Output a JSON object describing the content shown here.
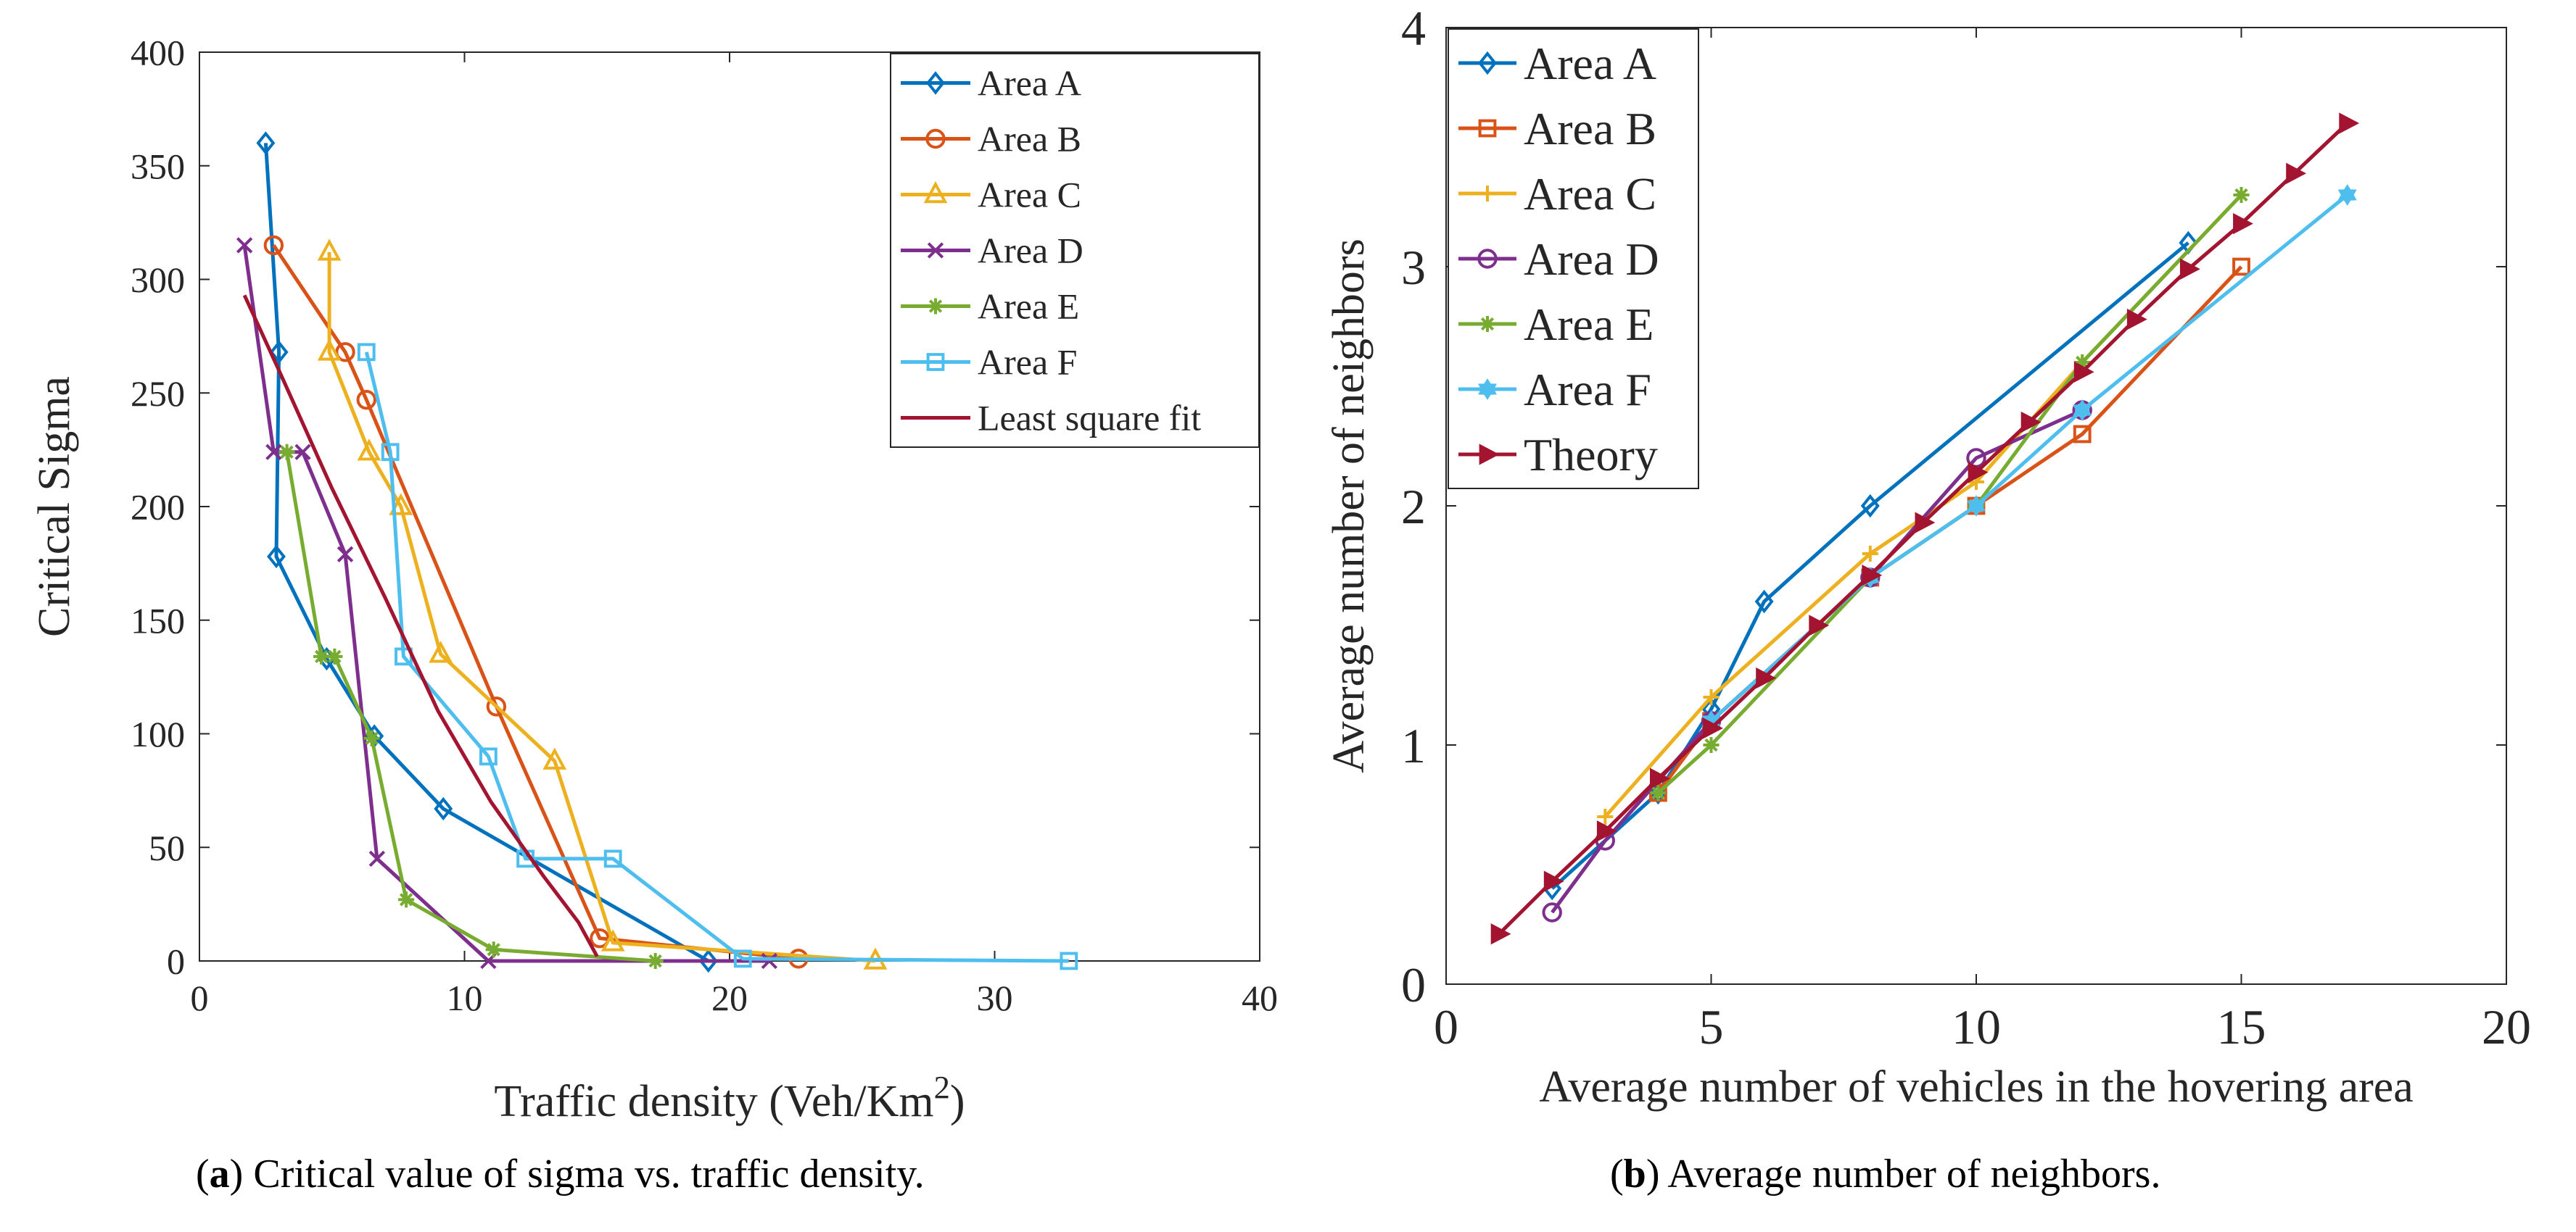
{
  "captions": {
    "a": {
      "tag": "a",
      "text": "Critical value of sigma vs. traffic density."
    },
    "b": {
      "tag": "b",
      "text": "Average number of neighbors."
    }
  },
  "chart_data": [
    {
      "type": "line",
      "title": "",
      "xlabel": "Traffic density (Veh/Km",
      "xlabel_sup": "2",
      "xlabel_suffix": ")",
      "ylabel": "Critical Sigma",
      "xlim": [
        0,
        40
      ],
      "ylim": [
        0,
        400
      ],
      "xticks": [
        0,
        10,
        20,
        30,
        40
      ],
      "yticks": [
        0,
        50,
        100,
        150,
        200,
        250,
        300,
        350,
        400
      ],
      "grid": false,
      "legend_position": "top-right",
      "series": [
        {
          "name": "Area A",
          "color": "#0072BD",
          "marker": "diamond",
          "x": [
            2.5,
            3.0,
            2.9,
            4.8,
            6.6,
            9.2,
            19.2
          ],
          "y": [
            360,
            268,
            178,
            133,
            99,
            67,
            0
          ]
        },
        {
          "name": "Area B",
          "color": "#D95319",
          "marker": "circle",
          "x": [
            2.8,
            5.5,
            6.3,
            11.2,
            15.1,
            22.6
          ],
          "y": [
            315,
            268,
            247,
            112,
            10,
            1
          ]
        },
        {
          "name": "Area C",
          "color": "#EDB120",
          "marker": "triangle",
          "x": [
            4.9,
            4.9,
            6.4,
            7.6,
            9.1,
            13.4,
            15.6,
            25.5
          ],
          "y": [
            312,
            268,
            224,
            200,
            135,
            88,
            8,
            0
          ]
        },
        {
          "name": "Area D",
          "color": "#7E2F8E",
          "marker": "x",
          "x": [
            1.7,
            2.8,
            3.9,
            5.5,
            6.7,
            10.9,
            21.5
          ],
          "y": [
            315,
            224,
            224,
            179,
            45,
            0,
            0
          ]
        },
        {
          "name": "Area E",
          "color": "#77AC30",
          "marker": "star",
          "x": [
            3.3,
            4.6,
            5.1,
            6.5,
            7.8,
            11.1,
            17.2
          ],
          "y": [
            224,
            134,
            134,
            98,
            27,
            5,
            0
          ]
        },
        {
          "name": "Area F",
          "color": "#4DBEEE",
          "marker": "square",
          "x": [
            6.3,
            7.2,
            7.7,
            10.9,
            12.3,
            15.6,
            20.5,
            32.8
          ],
          "y": [
            268,
            224,
            134,
            90,
            45,
            45,
            1,
            0
          ]
        },
        {
          "name": "Least square fit",
          "color": "#A2142F",
          "marker": "none",
          "x": [
            1.7,
            3.0,
            5.0,
            7.0,
            9.0,
            11.0,
            13.0,
            14.3,
            15.0
          ],
          "y": [
            293,
            260,
            208,
            160,
            110,
            70,
            37,
            17,
            2
          ]
        }
      ]
    },
    {
      "type": "line",
      "title": "",
      "xlabel": "Average number of vehicles in the hovering area",
      "ylabel": "Average number of neighbors",
      "xlim": [
        0,
        20
      ],
      "ylim": [
        0,
        4
      ],
      "xticks": [
        0,
        5,
        10,
        15,
        20
      ],
      "yticks": [
        0,
        1,
        2,
        3,
        4
      ],
      "grid": false,
      "legend_position": "top-left",
      "series": [
        {
          "name": "Area A",
          "color": "#0072BD",
          "marker": "diamond",
          "x": [
            2,
            4,
            5,
            6,
            8,
            14
          ],
          "y": [
            0.4,
            0.8,
            1.15,
            1.6,
            2.0,
            3.1
          ]
        },
        {
          "name": "Area B",
          "color": "#D95319",
          "marker": "square",
          "x": [
            4,
            5,
            8,
            10,
            12,
            15
          ],
          "y": [
            0.8,
            1.1,
            1.7,
            2.0,
            2.3,
            3.0
          ]
        },
        {
          "name": "Area C",
          "color": "#EDB120",
          "marker": "plus",
          "x": [
            3,
            5,
            8,
            10,
            12,
            15
          ],
          "y": [
            0.7,
            1.2,
            1.8,
            2.1,
            2.6,
            3.3
          ]
        },
        {
          "name": "Area D",
          "color": "#7E2F8E",
          "marker": "circle",
          "x": [
            2,
            3,
            5,
            8,
            10,
            12
          ],
          "y": [
            0.3,
            0.6,
            1.1,
            1.7,
            2.2,
            2.4
          ]
        },
        {
          "name": "Area E",
          "color": "#77AC30",
          "marker": "star",
          "x": [
            4,
            5,
            8,
            10,
            12,
            15
          ],
          "y": [
            0.8,
            1.0,
            1.7,
            2.0,
            2.6,
            3.3
          ]
        },
        {
          "name": "Area F",
          "color": "#4DBEEE",
          "marker": "hexagram",
          "x": [
            5,
            8,
            10,
            12,
            17
          ],
          "y": [
            1.1,
            1.7,
            2.0,
            2.4,
            3.3
          ]
        },
        {
          "name": "Theory",
          "color": "#A2142F",
          "marker": "triangle-right",
          "x": [
            1,
            2,
            3,
            4,
            5,
            6,
            7,
            8,
            9,
            10,
            11,
            12,
            13,
            14,
            15,
            16,
            17
          ],
          "y": [
            0.21,
            0.43,
            0.64,
            0.86,
            1.07,
            1.28,
            1.5,
            1.71,
            1.93,
            2.14,
            2.35,
            2.56,
            2.78,
            2.99,
            3.18,
            3.39,
            3.6
          ]
        }
      ]
    }
  ]
}
